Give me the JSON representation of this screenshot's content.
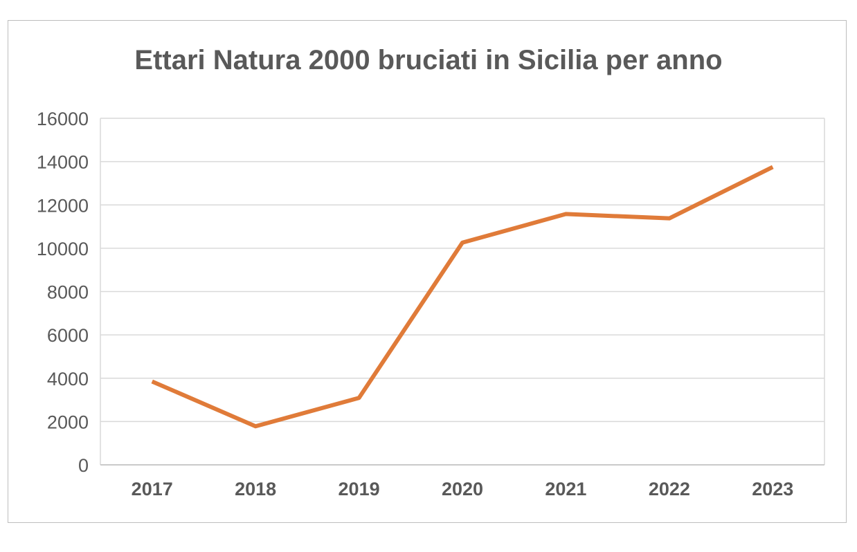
{
  "chart_data": {
    "type": "line",
    "title": "Ettari Natura 2000 bruciati in Sicilia per anno",
    "categories": [
      "2017",
      "2018",
      "2019",
      "2020",
      "2021",
      "2022",
      "2023"
    ],
    "series": [
      {
        "values": [
          3850,
          1780,
          3090,
          10260,
          11580,
          11380,
          13750
        ],
        "color": "#e07b39"
      }
    ],
    "ylim": [
      0,
      16000
    ],
    "yticks": [
      0,
      2000,
      4000,
      6000,
      8000,
      10000,
      12000,
      14000,
      16000
    ],
    "grid": true,
    "legend": "none",
    "xlabel": "",
    "ylabel": ""
  }
}
